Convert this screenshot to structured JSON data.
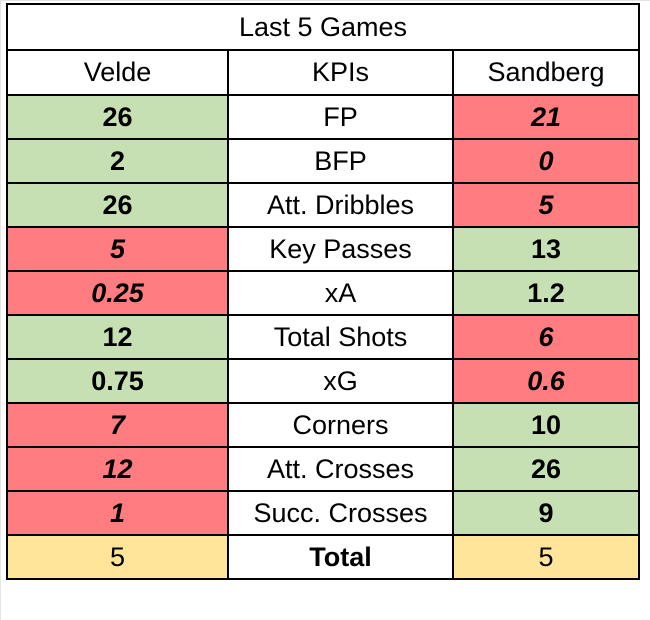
{
  "title": "Last 5 Games",
  "headers": {
    "left": "Velde",
    "middle": "KPIs",
    "right": "Sandberg"
  },
  "rows": [
    {
      "kpi": "FP",
      "left": "26",
      "left_status": "good",
      "right": "21",
      "right_status": "bad"
    },
    {
      "kpi": "BFP",
      "left": "2",
      "left_status": "good",
      "right": "0",
      "right_status": "bad"
    },
    {
      "kpi": "Att. Dribbles",
      "left": "26",
      "left_status": "good",
      "right": "5",
      "right_status": "bad"
    },
    {
      "kpi": "Key Passes",
      "left": "5",
      "left_status": "bad",
      "right": "13",
      "right_status": "good"
    },
    {
      "kpi": "xA",
      "left": "0.25",
      "left_status": "bad",
      "right": "1.2",
      "right_status": "good"
    },
    {
      "kpi": "Total Shots",
      "left": "12",
      "left_status": "good",
      "right": "6",
      "right_status": "bad"
    },
    {
      "kpi": "xG",
      "left": "0.75",
      "left_status": "good",
      "right": "0.6",
      "right_status": "bad"
    },
    {
      "kpi": "Corners",
      "left": "7",
      "left_status": "bad",
      "right": "10",
      "right_status": "good"
    },
    {
      "kpi": "Att. Crosses",
      "left": "12",
      "left_status": "bad",
      "right": "26",
      "right_status": "good"
    },
    {
      "kpi": "Succ. Crosses",
      "left": "1",
      "left_status": "bad",
      "right": "9",
      "right_status": "good"
    }
  ],
  "total": {
    "left": "5",
    "label": "Total",
    "right": "5"
  },
  "colors": {
    "good_fill": "#c6e0b4",
    "good_text": "#375623",
    "bad_fill": "#ff7c80",
    "bad_text": "#9c0006",
    "total_fill": "#ffe599"
  }
}
